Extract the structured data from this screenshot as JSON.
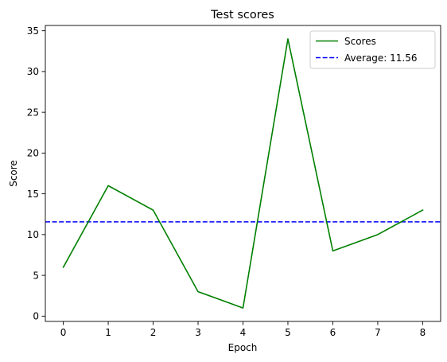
{
  "chart_data": {
    "type": "line",
    "title": "Test scores",
    "xlabel": "Epoch",
    "ylabel": "Score",
    "x": [
      0,
      1,
      2,
      3,
      4,
      5,
      6,
      7,
      8
    ],
    "xlim": [
      -0.4,
      8.4
    ],
    "ylim": [
      -0.65,
      35.65
    ],
    "xticks": [
      0,
      1,
      2,
      3,
      4,
      5,
      6,
      7,
      8
    ],
    "yticks": [
      0,
      5,
      10,
      15,
      20,
      25,
      30,
      35
    ],
    "grid": false,
    "legend_position": "top-right",
    "series": [
      {
        "name": "Scores",
        "values": [
          6,
          16,
          13,
          3,
          1,
          34,
          8,
          10,
          13
        ],
        "color": "#008000",
        "style": "solid"
      }
    ],
    "reference_lines": [
      {
        "name": "Average: 11.56",
        "orientation": "horizontal",
        "value": 11.56,
        "color": "#0000ff",
        "style": "dashed"
      }
    ]
  }
}
